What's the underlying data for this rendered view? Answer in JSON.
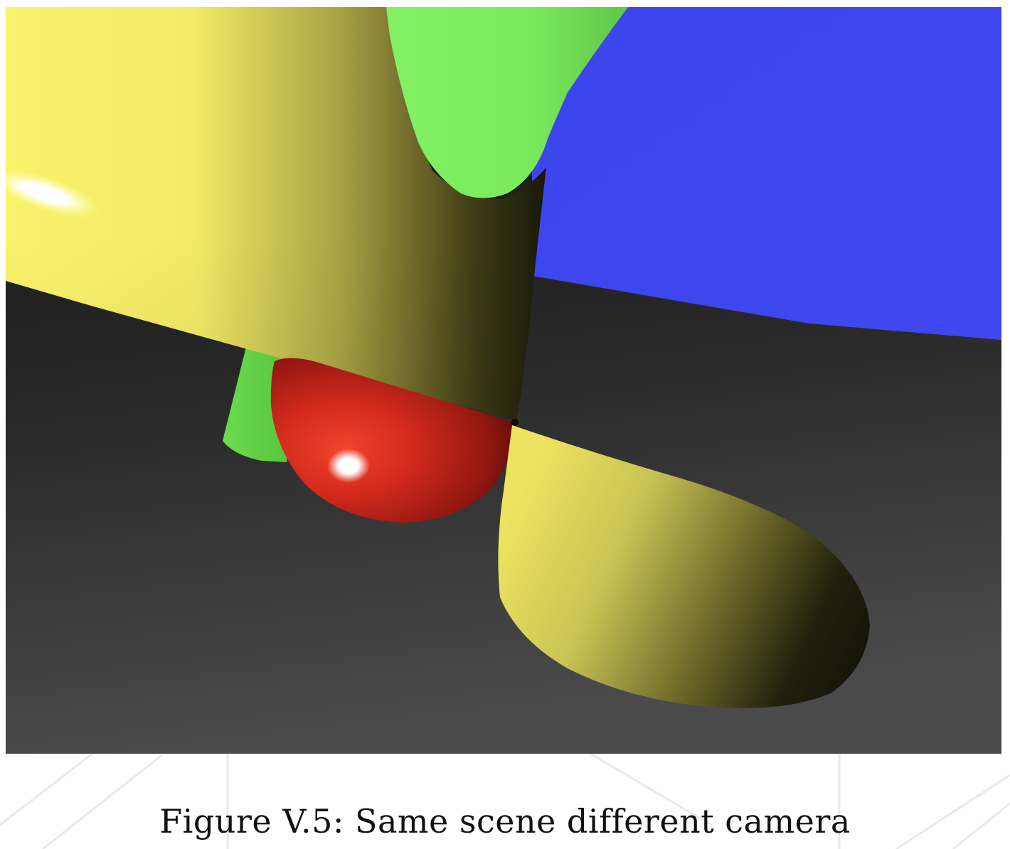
{
  "figure": {
    "caption": "Figure V.5: Same scene different camera",
    "objects": [
      {
        "name": "blue-plane",
        "color": "#3d47ee"
      },
      {
        "name": "dark-floor",
        "color": "#2e2e2e"
      },
      {
        "name": "yellow-cone-upper",
        "color": "#f2ee66"
      },
      {
        "name": "yellow-cone-lower",
        "color": "#e8e160"
      },
      {
        "name": "green-cylinder-upper",
        "color": "#80ef60"
      },
      {
        "name": "green-cylinder-lower",
        "color": "#68d94c"
      },
      {
        "name": "red-sphere",
        "color": "#d42a1e"
      }
    ]
  }
}
